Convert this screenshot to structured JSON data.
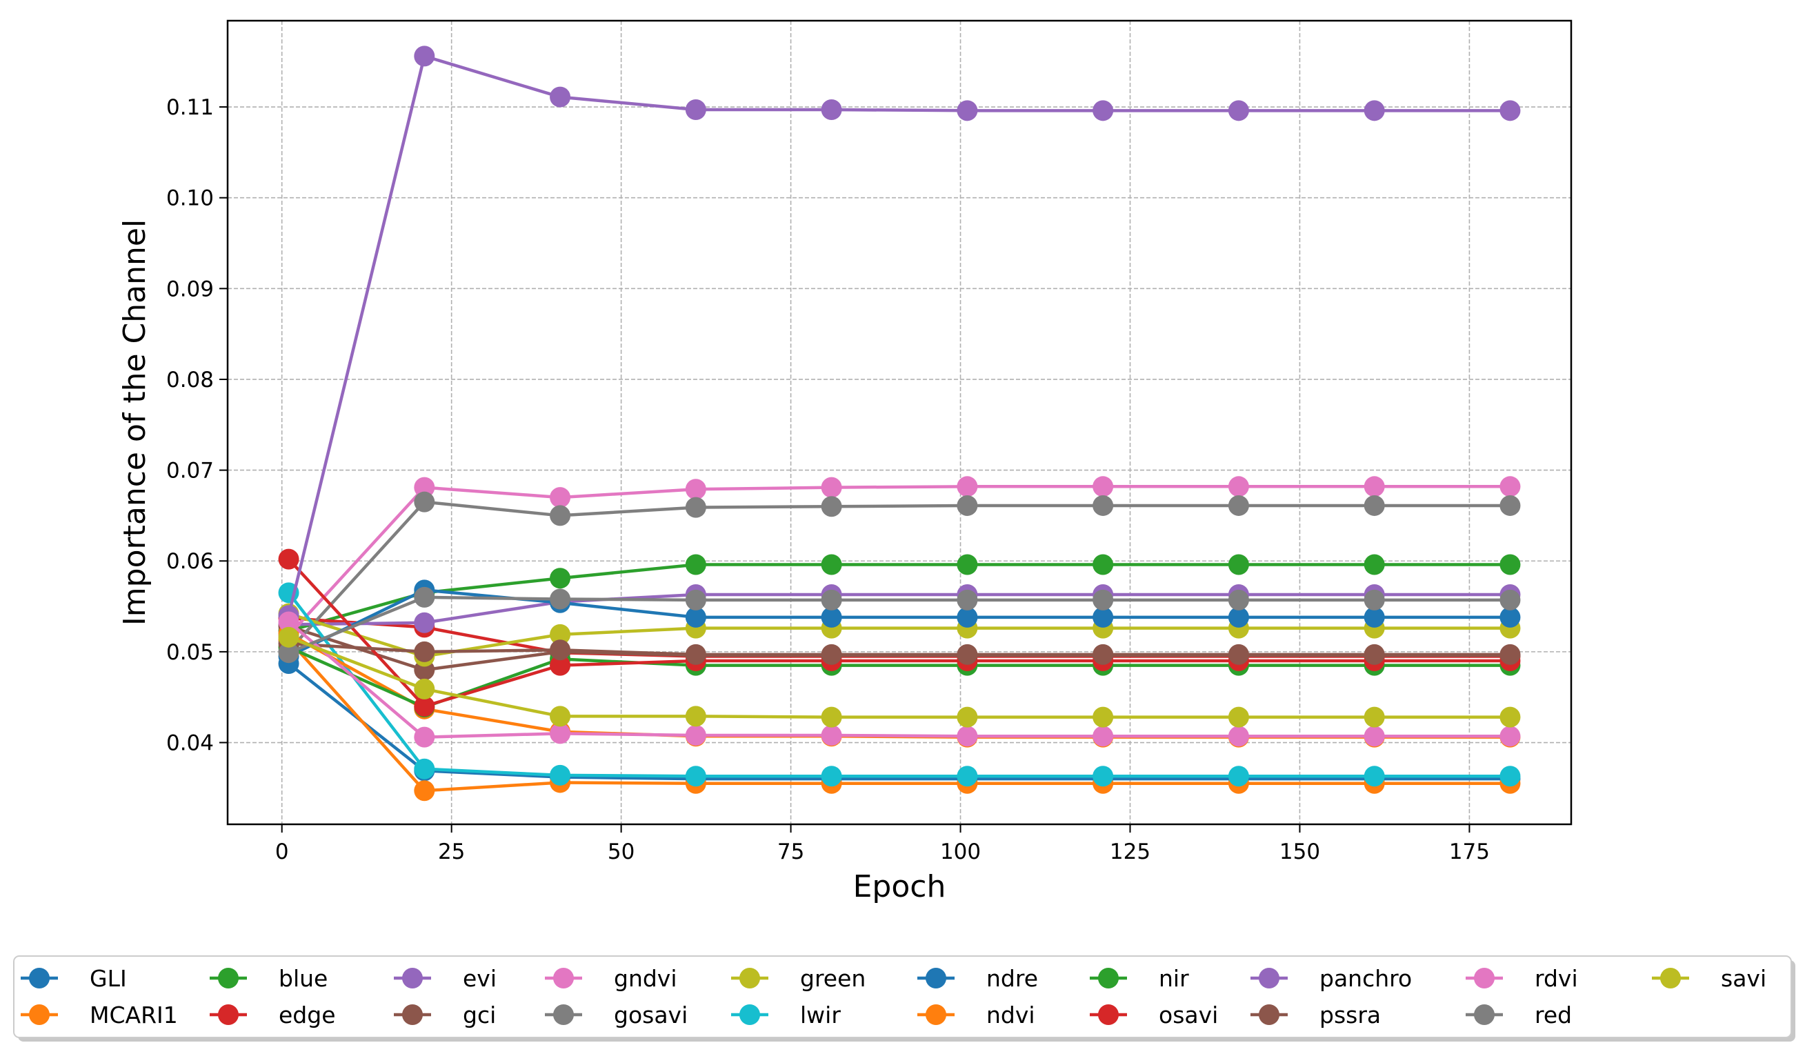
{
  "chart_data": {
    "type": "line",
    "title": "",
    "xlabel": "Epoch",
    "ylabel": "Importance of the Channel",
    "xlim": [
      -8,
      190
    ],
    "ylim": [
      0.031,
      0.1195
    ],
    "xticks": [
      0,
      25,
      50,
      75,
      100,
      125,
      150,
      175
    ],
    "yticks": [
      0.04,
      0.05,
      0.06,
      0.07,
      0.08,
      0.09,
      0.1,
      0.11
    ],
    "ytick_labels": [
      "0.04",
      "0.05",
      "0.06",
      "0.07",
      "0.08",
      "0.09",
      "0.10",
      "0.11"
    ],
    "grid": true,
    "legend_position": "bottom",
    "x": [
      1,
      21,
      41,
      61,
      81,
      101,
      121,
      141,
      161,
      181
    ],
    "series": [
      {
        "name": "GLI",
        "color": "#1f77b4",
        "values": [
          0.0487,
          0.0369,
          0.0362,
          0.036,
          0.036,
          0.036,
          0.036,
          0.036,
          0.036,
          0.036
        ]
      },
      {
        "name": "MCARI1",
        "color": "#ff7f0e",
        "values": [
          0.0513,
          0.0347,
          0.0356,
          0.0355,
          0.0355,
          0.0355,
          0.0355,
          0.0355,
          0.0355,
          0.0355
        ]
      },
      {
        "name": "blue",
        "color": "#2ca02c",
        "values": [
          0.0523,
          0.0565,
          0.0581,
          0.0596,
          0.0596,
          0.0596,
          0.0596,
          0.0596,
          0.0596,
          0.0596
        ]
      },
      {
        "name": "edge",
        "color": "#d62728",
        "values": [
          0.0537,
          0.0527,
          0.0499,
          0.0495,
          0.0495,
          0.0495,
          0.0495,
          0.0495,
          0.0495,
          0.0495
        ]
      },
      {
        "name": "evi",
        "color": "#9467bd",
        "values": [
          0.053,
          0.0532,
          0.0555,
          0.0563,
          0.0563,
          0.0563,
          0.0563,
          0.0563,
          0.0563,
          0.0563
        ]
      },
      {
        "name": "gci",
        "color": "#8c564b",
        "values": [
          0.0528,
          0.048,
          0.05,
          0.0496,
          0.0496,
          0.0496,
          0.0496,
          0.0496,
          0.0496,
          0.0496
        ]
      },
      {
        "name": "gndvi",
        "color": "#e377c2",
        "values": [
          0.0518,
          0.0681,
          0.067,
          0.0679,
          0.0681,
          0.0682,
          0.0682,
          0.0682,
          0.0682,
          0.0682
        ]
      },
      {
        "name": "gosavi",
        "color": "#7f7f7f",
        "values": [
          0.0501,
          0.0665,
          0.065,
          0.0659,
          0.066,
          0.0661,
          0.0661,
          0.0661,
          0.0661,
          0.0661
        ]
      },
      {
        "name": "green",
        "color": "#bcbd22",
        "values": [
          0.0542,
          0.0495,
          0.0519,
          0.0526,
          0.0526,
          0.0526,
          0.0526,
          0.0526,
          0.0526,
          0.0526
        ]
      },
      {
        "name": "lwir",
        "color": "#17becf",
        "values": [
          0.0565,
          0.0371,
          0.0364,
          0.0363,
          0.0363,
          0.0363,
          0.0363,
          0.0363,
          0.0363,
          0.0363
        ]
      },
      {
        "name": "ndre",
        "color": "#1f77b4",
        "values": [
          0.0495,
          0.0568,
          0.0554,
          0.0538,
          0.0538,
          0.0538,
          0.0538,
          0.0538,
          0.0538,
          0.0538
        ]
      },
      {
        "name": "ndvi",
        "color": "#ff7f0e",
        "values": [
          0.052,
          0.0437,
          0.0412,
          0.0407,
          0.0407,
          0.0406,
          0.0406,
          0.0406,
          0.0406,
          0.0406
        ]
      },
      {
        "name": "nir",
        "color": "#2ca02c",
        "values": [
          0.0505,
          0.0439,
          0.0492,
          0.0485,
          0.0485,
          0.0485,
          0.0485,
          0.0485,
          0.0485,
          0.0485
        ]
      },
      {
        "name": "osavi",
        "color": "#d62728",
        "values": [
          0.0602,
          0.044,
          0.0485,
          0.049,
          0.049,
          0.049,
          0.049,
          0.049,
          0.049,
          0.049
        ]
      },
      {
        "name": "panchro",
        "color": "#9467bd",
        "values": [
          0.054,
          0.1156,
          0.1111,
          0.1097,
          0.1097,
          0.1096,
          0.1096,
          0.1096,
          0.1096,
          0.1096
        ]
      },
      {
        "name": "pssra",
        "color": "#8c564b",
        "values": [
          0.0509,
          0.05,
          0.0502,
          0.0497,
          0.0497,
          0.0497,
          0.0497,
          0.0497,
          0.0497,
          0.0497
        ]
      },
      {
        "name": "rdvi",
        "color": "#e377c2",
        "values": [
          0.0533,
          0.0406,
          0.041,
          0.0408,
          0.0408,
          0.0407,
          0.0407,
          0.0407,
          0.0407,
          0.0407
        ]
      },
      {
        "name": "red",
        "color": "#7f7f7f",
        "values": [
          0.0499,
          0.056,
          0.0558,
          0.0557,
          0.0557,
          0.0557,
          0.0557,
          0.0557,
          0.0557,
          0.0557
        ]
      },
      {
        "name": "savi",
        "color": "#bcbd22",
        "values": [
          0.0516,
          0.0459,
          0.0429,
          0.0429,
          0.0428,
          0.0428,
          0.0428,
          0.0428,
          0.0428,
          0.0428
        ]
      }
    ]
  }
}
